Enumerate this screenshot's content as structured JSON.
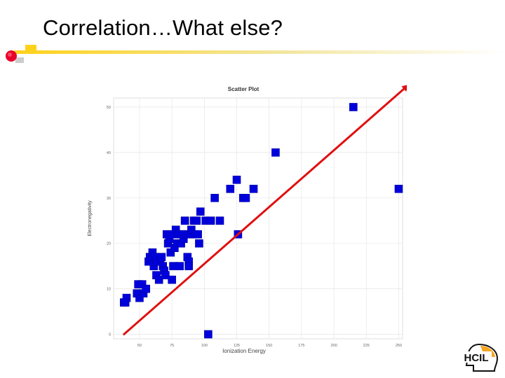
{
  "slide": {
    "title": "Correlation…What else?"
  },
  "logo": {
    "text": "HCIL",
    "colors": {
      "orange": "#f5a623",
      "dark": "#111111"
    }
  },
  "accent_colors": {
    "bullet_red": "#e8002a",
    "bullet_yellow": "#ffd21a",
    "points": "#0000dd",
    "trend_line": "#e01010"
  },
  "chart_data": {
    "type": "scatter",
    "title": "Scatter Plot",
    "xlabel": "Ionization Energy",
    "ylabel": "Electronegativity",
    "xlim": [
      30,
      253
    ],
    "ylim": [
      -1,
      52
    ],
    "xticks": [
      50,
      75,
      100,
      125,
      150,
      175,
      200,
      225,
      250
    ],
    "yticks": [
      0,
      10,
      20,
      30,
      40,
      50
    ],
    "grid": true,
    "points": [
      [
        38,
        7
      ],
      [
        40,
        8
      ],
      [
        39,
        7
      ],
      [
        48,
        9
      ],
      [
        49,
        11
      ],
      [
        50,
        8
      ],
      [
        52,
        11
      ],
      [
        53,
        9
      ],
      [
        55,
        10
      ],
      [
        57,
        16
      ],
      [
        58,
        17
      ],
      [
        60,
        18
      ],
      [
        61,
        15
      ],
      [
        62,
        17
      ],
      [
        63,
        16
      ],
      [
        63,
        13
      ],
      [
        65,
        12
      ],
      [
        66,
        16
      ],
      [
        67,
        17
      ],
      [
        68,
        15
      ],
      [
        69,
        14
      ],
      [
        70,
        13
      ],
      [
        71,
        22
      ],
      [
        72,
        20
      ],
      [
        73,
        21
      ],
      [
        74,
        18
      ],
      [
        74,
        22
      ],
      [
        75,
        12
      ],
      [
        76,
        15
      ],
      [
        77,
        19
      ],
      [
        78,
        23
      ],
      [
        79,
        20
      ],
      [
        80,
        22
      ],
      [
        81,
        15
      ],
      [
        82,
        20
      ],
      [
        83,
        22
      ],
      [
        84,
        21
      ],
      [
        85,
        25
      ],
      [
        86,
        22
      ],
      [
        87,
        17
      ],
      [
        88,
        16
      ],
      [
        88,
        15
      ],
      [
        89,
        22
      ],
      [
        90,
        23
      ],
      [
        92,
        25
      ],
      [
        93,
        22
      ],
      [
        94,
        25
      ],
      [
        95,
        22
      ],
      [
        96,
        20
      ],
      [
        97,
        27
      ],
      [
        101,
        25
      ],
      [
        103,
        0
      ],
      [
        105,
        25
      ],
      [
        108,
        30
      ],
      [
        112,
        25
      ],
      [
        120,
        32
      ],
      [
        125,
        34
      ],
      [
        126,
        22
      ],
      [
        130,
        30
      ],
      [
        132,
        30
      ],
      [
        138,
        32
      ],
      [
        155,
        40
      ],
      [
        215,
        50
      ],
      [
        250,
        32
      ]
    ],
    "trend_line": {
      "from": [
        38,
        0
      ],
      "to": [
        258,
        55
      ]
    }
  }
}
